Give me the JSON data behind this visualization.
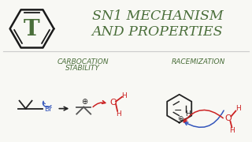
{
  "bg_color": "#f8f8f4",
  "title_line1": "SN1 MECHANISM",
  "title_line2": "AND PROPERTIES",
  "title_color": "#4a6e3a",
  "title_fontsize": 12.5,
  "hex_color": "#1a1a1a",
  "T_color": "#4a6e3a",
  "label1": "CARBOCATION",
  "label1b": "STABILITY",
  "label2": "RACEMIZATION",
  "label_color": "#4a6e3a",
  "label_fontsize": 6.5,
  "arrow_color": "#333333",
  "blue_color": "#3355bb",
  "red_color": "#cc2222",
  "dark_color": "#222222"
}
